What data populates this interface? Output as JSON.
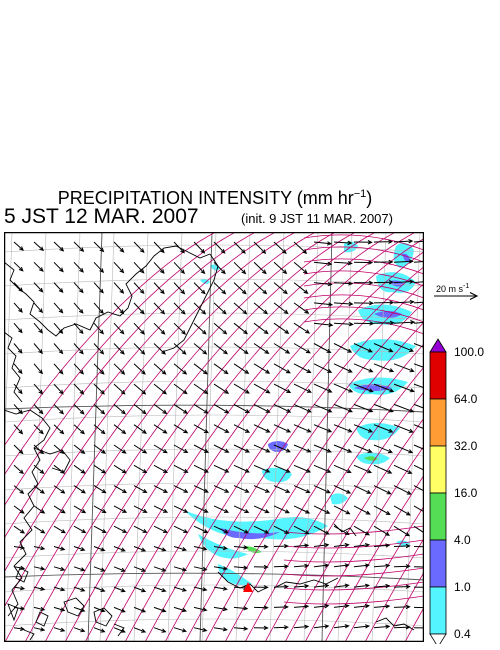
{
  "title": {
    "main": "PRECIPITATION INTENSITY (mm hr",
    "unit_sup": "−1",
    "close": ")"
  },
  "valid_time": "5 JST 12 MAR. 2007",
  "init_time": "(init. 9 JST 11 MAR. 2007)",
  "reference_vector": {
    "label": "20 m s",
    "label_sup": "-1",
    "speed": 20
  },
  "colorbar": {
    "labels": [
      "100.0",
      "64.0",
      "32.0",
      "16.0",
      "4.0",
      "1.0",
      "0.4"
    ],
    "colors": [
      "#e00000",
      "#ff9c33",
      "#ffff66",
      "#55dd55",
      "#6a6aff",
      "#55f5ff"
    ],
    "over_color": "#9400d3",
    "under_color": "#ffffff"
  },
  "map": {
    "grid": "on",
    "coastline_color": "#000000",
    "streamline_color": "#c0006a",
    "wind_vector_color": "#000000",
    "marker_color": "#ff0000"
  }
}
